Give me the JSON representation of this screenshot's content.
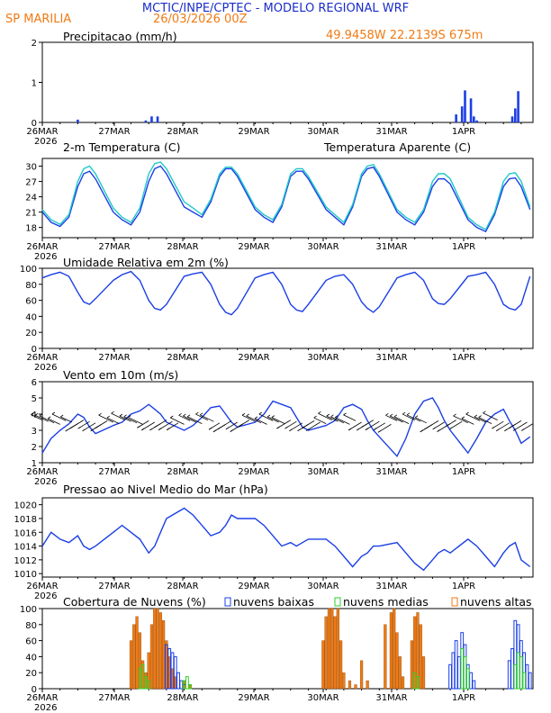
{
  "header": {
    "title": "MCTIC/INPE/CPTEC - MODELO REGIONAL WRF",
    "station": "SP MARILIA",
    "run": "26/03/2026 00Z",
    "location": "49.9458W 22.2139S 675m"
  },
  "colors": {
    "title": "#1a2cc8",
    "orange": "#f07a14",
    "blue": "#1a3ee6",
    "cyan": "#20c8c8",
    "green": "#2ccf2c",
    "black": "#000000"
  },
  "x_axis": {
    "start_label": "26MAR",
    "year": "2026",
    "days": [
      "26MAR",
      "27MAR",
      "28MAR",
      "29MAR",
      "30MAR",
      "31MAR",
      "1APR"
    ]
  },
  "chart_data": [
    {
      "id": "precip",
      "type": "bar",
      "title": "Precipitacao (mm/h)",
      "ylim": [
        0,
        2
      ],
      "yticks": [
        0,
        1,
        2
      ],
      "x_hours": [
        12,
        35,
        37,
        39,
        140,
        142,
        143,
        145,
        146,
        147,
        159,
        160,
        161
      ],
      "values": [
        0.07,
        0.05,
        0.15,
        0.15,
        0.2,
        0.4,
        0.8,
        0.6,
        0.15,
        0.05,
        0.15,
        0.35,
        0.78
      ]
    },
    {
      "id": "temp",
      "type": "line",
      "title": "2-m Temperatura (C)",
      "legend_extra": "Temperatura Aparente (C)",
      "ylim": [
        16,
        31.5
      ],
      "yticks": [
        18,
        21,
        24,
        27,
        30
      ],
      "series": [
        {
          "name": "2-m Temperatura (C)",
          "color": "#1a3ee6",
          "x": [
            0,
            3,
            6,
            9,
            12,
            14,
            16,
            18,
            24,
            27,
            30,
            33,
            36,
            38,
            40,
            42,
            48,
            51,
            54,
            57,
            60,
            62,
            64,
            66,
            72,
            75,
            78,
            81,
            84,
            86,
            88,
            90,
            96,
            99,
            102,
            105,
            108,
            110,
            112,
            114,
            120,
            123,
            126,
            129,
            132,
            134,
            136,
            138,
            144,
            147,
            150,
            153,
            156,
            158,
            160,
            162,
            165
          ],
          "values": [
            21,
            19,
            18.2,
            20,
            26,
            28.5,
            29,
            27.5,
            21,
            19.5,
            18.5,
            21,
            27,
            29.5,
            30,
            28.5,
            22,
            21,
            20,
            23,
            28,
            29.5,
            29.5,
            28,
            21.5,
            20,
            19,
            22,
            28,
            29,
            29,
            27.5,
            21.5,
            20,
            18.5,
            22,
            28,
            29.5,
            29.8,
            28,
            21,
            19.5,
            18.5,
            21,
            26,
            27.5,
            27.5,
            26.5,
            19.5,
            18,
            17.2,
            20.5,
            26,
            27.5,
            27.7,
            26,
            21.5
          ]
        },
        {
          "name": "Temperatura Aparente (C)",
          "color": "#20c8c8",
          "x": [
            0,
            3,
            6,
            9,
            12,
            14,
            16,
            18,
            24,
            27,
            30,
            33,
            36,
            38,
            40,
            42,
            48,
            51,
            54,
            57,
            60,
            62,
            64,
            66,
            72,
            75,
            78,
            81,
            84,
            86,
            88,
            90,
            96,
            99,
            102,
            105,
            108,
            110,
            112,
            114,
            120,
            123,
            126,
            129,
            132,
            134,
            136,
            138,
            144,
            147,
            150,
            153,
            156,
            158,
            160,
            162,
            165
          ],
          "values": [
            21.5,
            19.5,
            18.6,
            20.5,
            27,
            29.5,
            30,
            28.5,
            21.8,
            20,
            19,
            21.8,
            28.5,
            30.5,
            30.8,
            29.5,
            23,
            21.8,
            20.5,
            23.5,
            28.5,
            29.8,
            29.8,
            28.5,
            22,
            20.5,
            19.5,
            22.5,
            28.5,
            29.5,
            29.5,
            28,
            22,
            20.5,
            19,
            22.5,
            28.5,
            30,
            30.3,
            28.5,
            21.5,
            20,
            19,
            21.5,
            27,
            28.5,
            28.5,
            27.5,
            20,
            18.5,
            17.6,
            21,
            27,
            28.5,
            28.7,
            27,
            22
          ]
        }
      ]
    },
    {
      "id": "rh",
      "type": "line",
      "title": "Umidade Relativa em 2m (%)",
      "ylim": [
        0,
        100
      ],
      "yticks": [
        0,
        20,
        40,
        60,
        80,
        100
      ],
      "series": [
        {
          "name": "Umidade Relativa em 2m (%)",
          "color": "#1a3ee6",
          "x": [
            0,
            3,
            6,
            9,
            12,
            14,
            16,
            18,
            24,
            27,
            30,
            33,
            36,
            38,
            40,
            42,
            48,
            51,
            54,
            57,
            60,
            62,
            64,
            66,
            72,
            75,
            78,
            81,
            84,
            86,
            88,
            90,
            96,
            99,
            102,
            105,
            108,
            110,
            112,
            114,
            120,
            123,
            126,
            129,
            132,
            134,
            136,
            138,
            144,
            147,
            150,
            153,
            156,
            158,
            160,
            162,
            165
          ],
          "values": [
            88,
            92,
            95,
            90,
            70,
            58,
            55,
            62,
            85,
            92,
            96,
            85,
            60,
            50,
            48,
            55,
            90,
            93,
            95,
            80,
            55,
            45,
            42,
            50,
            88,
            92,
            95,
            80,
            55,
            48,
            46,
            55,
            85,
            90,
            92,
            80,
            58,
            50,
            45,
            52,
            88,
            92,
            95,
            85,
            62,
            56,
            55,
            62,
            90,
            92,
            95,
            80,
            55,
            50,
            48,
            55,
            90
          ]
        }
      ]
    },
    {
      "id": "wind",
      "type": "line",
      "title": "Vento em 10m (m/s)",
      "ylim": [
        1,
        6
      ],
      "yticks": [
        1,
        2,
        3,
        4,
        5,
        6
      ],
      "series": [
        {
          "name": "Vento em 10m (m/s)",
          "color": "#1a3ee6",
          "x": [
            0,
            3,
            6,
            9,
            12,
            14,
            16,
            18,
            24,
            27,
            30,
            33,
            36,
            38,
            40,
            42,
            48,
            51,
            54,
            57,
            60,
            62,
            64,
            66,
            72,
            75,
            78,
            81,
            84,
            86,
            88,
            90,
            96,
            99,
            102,
            105,
            108,
            110,
            112,
            114,
            120,
            123,
            126,
            129,
            132,
            134,
            136,
            138,
            144,
            147,
            150,
            153,
            156,
            158,
            160,
            162,
            165
          ],
          "values": [
            1.6,
            2.5,
            3.0,
            3.4,
            4.0,
            3.8,
            3.2,
            2.8,
            3.3,
            3.5,
            4.0,
            4.2,
            4.6,
            4.3,
            4.0,
            3.5,
            3.0,
            3.3,
            3.8,
            4.4,
            4.5,
            4.0,
            3.5,
            3.2,
            3.5,
            4.0,
            4.8,
            4.6,
            4.4,
            3.8,
            3.2,
            3.0,
            3.3,
            3.6,
            4.4,
            4.6,
            4.3,
            3.6,
            3.0,
            2.6,
            1.4,
            2.5,
            4.0,
            4.8,
            5.0,
            4.4,
            3.6,
            3.0,
            1.6,
            2.5,
            3.5,
            4.0,
            4.3,
            3.6,
            3.0,
            2.2,
            2.6
          ]
        }
      ]
    },
    {
      "id": "pres",
      "type": "line",
      "title": "Pressao ao Nivel Medio do Mar (hPa)",
      "ylim": [
        1009.5,
        1021
      ],
      "yticks": [
        1010,
        1012,
        1014,
        1016,
        1018,
        1020
      ],
      "series": [
        {
          "name": "Pressao ao Nivel Medio do Mar (hPa)",
          "color": "#1a3ee6",
          "x": [
            0,
            3,
            6,
            9,
            12,
            14,
            16,
            18,
            24,
            27,
            30,
            33,
            36,
            38,
            40,
            42,
            48,
            51,
            54,
            57,
            60,
            62,
            64,
            66,
            72,
            75,
            78,
            81,
            84,
            86,
            88,
            90,
            96,
            99,
            102,
            105,
            108,
            110,
            112,
            114,
            120,
            123,
            126,
            129,
            132,
            134,
            136,
            138,
            144,
            147,
            150,
            153,
            156,
            158,
            160,
            162,
            165
          ],
          "values": [
            1014,
            1016,
            1015,
            1014.5,
            1015.5,
            1014,
            1013.5,
            1014,
            1016,
            1017,
            1016,
            1015,
            1013,
            1014,
            1016,
            1018,
            1019.5,
            1018.5,
            1017,
            1015.5,
            1016,
            1017,
            1018.5,
            1018,
            1018,
            1017,
            1015.5,
            1014,
            1014.5,
            1014,
            1014.5,
            1015,
            1015,
            1014,
            1012.5,
            1011,
            1012.5,
            1013,
            1014,
            1014,
            1014.5,
            1013,
            1011.5,
            1010.5,
            1012,
            1013,
            1013.5,
            1013,
            1015,
            1014,
            1012.5,
            1011,
            1013,
            1014,
            1014.5,
            1012,
            1011
          ]
        }
      ]
    },
    {
      "id": "clouds",
      "type": "bar",
      "title": "Cobertura de Nuvens (%)",
      "ylim": [
        0,
        100
      ],
      "yticks": [
        0,
        20,
        40,
        60,
        80,
        100
      ],
      "legend": [
        "nuvens baixas",
        "nuvens medias",
        "nuvens altas"
      ],
      "series": [
        {
          "name": "nuvens altas",
          "color": "#f07a14",
          "x_hours": [
            30,
            31,
            32,
            33,
            34,
            35,
            36,
            37,
            38,
            39,
            40,
            41,
            42,
            43,
            44,
            45,
            48,
            50,
            95,
            96,
            97,
            98,
            99,
            100,
            101,
            102,
            104,
            106,
            108,
            110,
            116,
            118,
            119,
            120,
            121,
            122,
            125,
            126,
            127,
            128,
            129
          ],
          "values": [
            60,
            80,
            90,
            70,
            35,
            20,
            45,
            80,
            100,
            100,
            95,
            85,
            60,
            40,
            25,
            15,
            10,
            5,
            60,
            90,
            100,
            100,
            90,
            100,
            60,
            20,
            10,
            5,
            35,
            10,
            80,
            95,
            100,
            70,
            40,
            15,
            60,
            90,
            95,
            80,
            40
          ]
        },
        {
          "name": "nuvens baixas",
          "color": "#1a3ee6",
          "x_hours": [
            42,
            43,
            44,
            45,
            46,
            47,
            48,
            138,
            139,
            140,
            141,
            142,
            143,
            144,
            145,
            146,
            158,
            159,
            160,
            161,
            162,
            163,
            164,
            165
          ],
          "values": [
            55,
            50,
            45,
            40,
            20,
            10,
            5,
            30,
            45,
            60,
            40,
            70,
            55,
            30,
            20,
            10,
            35,
            50,
            85,
            80,
            60,
            45,
            30,
            20
          ]
        },
        {
          "name": "nuvens medias",
          "color": "#2ccf2c",
          "x_hours": [
            33,
            34,
            35,
            36,
            48,
            49,
            50,
            126,
            127,
            142,
            143,
            144,
            160,
            161,
            162,
            163
          ],
          "values": [
            25,
            30,
            15,
            10,
            10,
            15,
            5,
            20,
            15,
            50,
            40,
            25,
            30,
            45,
            40,
            20
          ]
        }
      ]
    }
  ]
}
